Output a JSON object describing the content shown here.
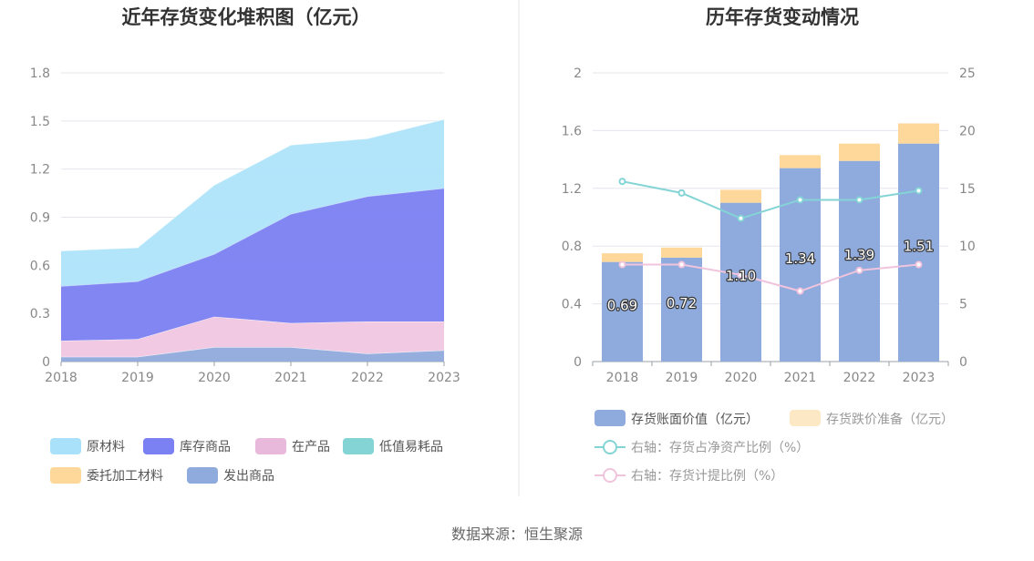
{
  "left_chart": {
    "title": "近年存货变化堆积图（亿元）",
    "type": "area",
    "x": [
      "2018",
      "2019",
      "2020",
      "2021",
      "2022",
      "2023"
    ],
    "y_ticks": [
      "0",
      "0.3",
      "0.6",
      "0.9",
      "1.2",
      "1.5",
      "1.8"
    ],
    "ylim": [
      0,
      1.8
    ],
    "stacking": "stacked",
    "series": [
      {
        "name": "发出商品",
        "color": "#8faadc",
        "values": [
          0.03,
          0.03,
          0.09,
          0.09,
          0.05,
          0.07
        ]
      },
      {
        "name": "委托加工材料",
        "color": "#fdd89a",
        "values": [
          0,
          0,
          0,
          0,
          0,
          0
        ]
      },
      {
        "name": "在产品",
        "color": "#f0c6e0",
        "values": [
          0.1,
          0.11,
          0.19,
          0.15,
          0.2,
          0.18
        ]
      },
      {
        "name": "低值易耗品",
        "color": "#84d4d6",
        "values": [
          0,
          0,
          0,
          0,
          0,
          0
        ]
      },
      {
        "name": "库存商品",
        "color": "#7b80f2",
        "values": [
          0.34,
          0.36,
          0.39,
          0.68,
          0.78,
          0.83
        ]
      },
      {
        "name": "原材料",
        "color": "#aee3fa",
        "values": [
          0.22,
          0.21,
          0.43,
          0.43,
          0.36,
          0.43
        ]
      }
    ],
    "legend": [
      {
        "name": "原材料",
        "color": "#a9e1fb"
      },
      {
        "name": "库存商品",
        "color": "#7b80f2"
      },
      {
        "name": "在产品",
        "color": "#e9b9dc"
      },
      {
        "name": "低值易耗品",
        "color": "#84d4d6"
      },
      {
        "name": "委托加工材料",
        "color": "#fdd89a"
      },
      {
        "name": "发出商品",
        "color": "#8faadc"
      }
    ]
  },
  "right_chart": {
    "title": "历年存货变动情况",
    "type": "bar+line",
    "x": [
      "2018",
      "2019",
      "2020",
      "2021",
      "2022",
      "2023"
    ],
    "y_left_ticks": [
      "0",
      "0.4",
      "0.8",
      "1.2",
      "1.6",
      "2"
    ],
    "y_right_ticks": [
      "0",
      "5",
      "10",
      "15",
      "20",
      "25"
    ],
    "ylim_left": [
      0,
      2
    ],
    "ylim_right": [
      0,
      25
    ],
    "bars": [
      {
        "name": "存货账面价值（亿元）",
        "color": "#8faadc",
        "values": [
          0.69,
          0.72,
          1.1,
          1.34,
          1.39,
          1.51
        ],
        "labels": [
          "0.69",
          "0.72",
          "1.10",
          "1.34",
          "1.39",
          "1.51"
        ]
      },
      {
        "name": "存货跌价准备（亿元）",
        "color": "#fdd89a",
        "legend_color": "#fde8c6",
        "values": [
          0.06,
          0.07,
          0.09,
          0.09,
          0.12,
          0.14
        ]
      }
    ],
    "lines": [
      {
        "name": "右轴：存货占净资产比例（%）",
        "color": "#84d4d6",
        "values": [
          15.6,
          14.6,
          12.4,
          14.0,
          14.0,
          14.8
        ]
      },
      {
        "name": "右轴：存货计提比例（%）",
        "color": "#efc4dc",
        "values": [
          8.4,
          8.4,
          7.5,
          6.1,
          7.9,
          8.4
        ]
      }
    ]
  },
  "source": "数据来源：恒生聚源"
}
